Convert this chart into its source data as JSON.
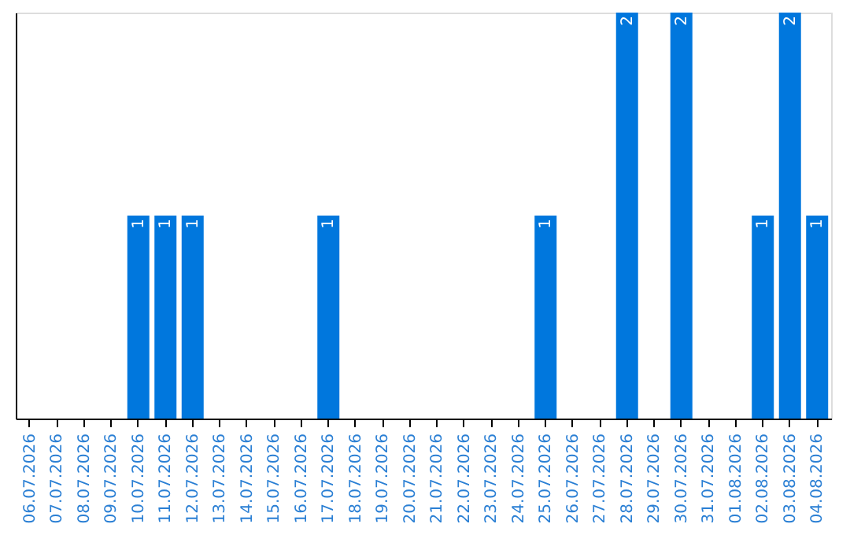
{
  "chart_data": {
    "type": "bar",
    "categories": [
      "06.07.2026",
      "07.07.2026",
      "08.07.2026",
      "09.07.2026",
      "10.07.2026",
      "11.07.2026",
      "12.07.2026",
      "13.07.2026",
      "14.07.2026",
      "15.07.2026",
      "16.07.2026",
      "17.07.2026",
      "18.07.2026",
      "19.07.2026",
      "20.07.2026",
      "21.07.2026",
      "22.07.2026",
      "23.07.2026",
      "24.07.2026",
      "25.07.2026",
      "26.07.2026",
      "27.07.2026",
      "28.07.2026",
      "29.07.2026",
      "30.07.2026",
      "31.07.2026",
      "01.08.2026",
      "02.08.2026",
      "03.08.2026",
      "04.08.2026"
    ],
    "values": [
      0,
      0,
      0,
      0,
      1,
      1,
      1,
      0,
      0,
      0,
      0,
      1,
      0,
      0,
      0,
      0,
      0,
      0,
      0,
      1,
      0,
      0,
      2,
      0,
      2,
      0,
      0,
      1,
      2,
      1
    ],
    "value_labels": [
      null,
      null,
      null,
      null,
      "1",
      "1",
      "1",
      null,
      null,
      null,
      null,
      "1",
      null,
      null,
      null,
      null,
      null,
      null,
      null,
      "1",
      null,
      null,
      "2",
      null,
      "2",
      null,
      null,
      "1",
      "2",
      "1"
    ],
    "color": "#0077dd",
    "ylim": [
      0,
      2
    ],
    "tick_labels": "x",
    "grid": false
  }
}
